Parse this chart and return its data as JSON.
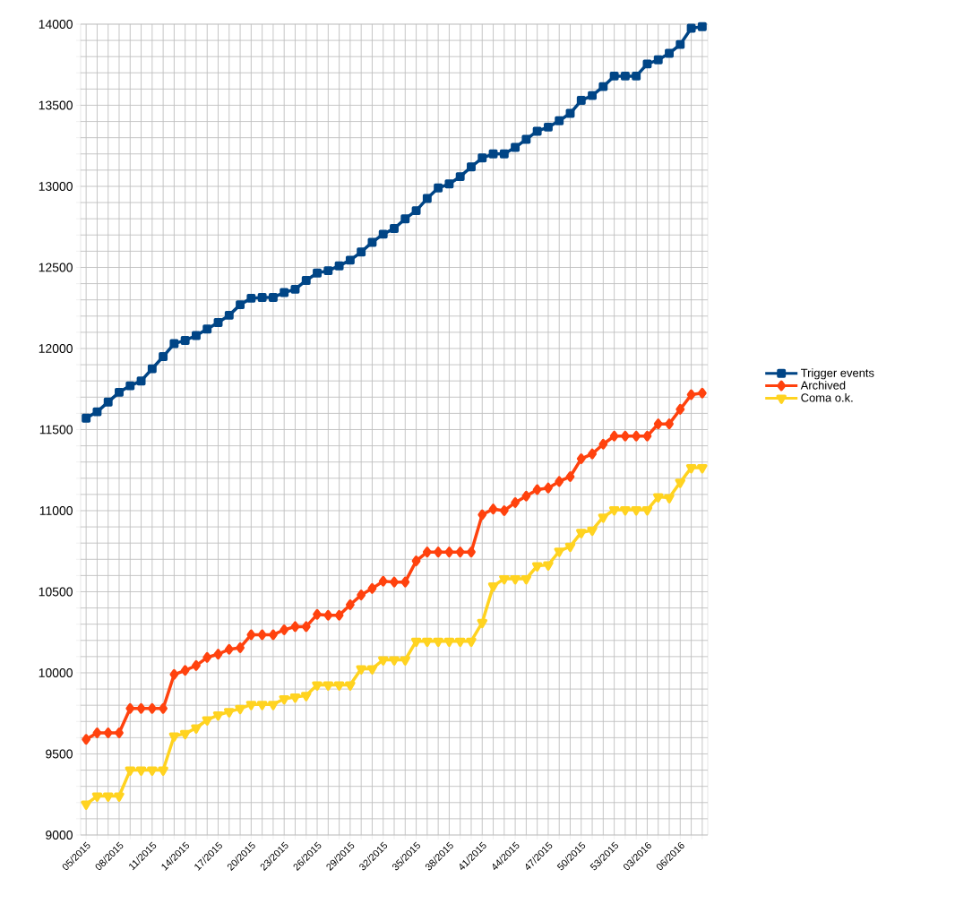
{
  "chart_data": {
    "type": "line",
    "categories": [
      "05/2015",
      null,
      null,
      "08/2015",
      null,
      null,
      "11/2015",
      null,
      null,
      "14/2015",
      null,
      null,
      "17/2015",
      null,
      null,
      "20/2015",
      null,
      null,
      "23/2015",
      null,
      null,
      "26/2015",
      null,
      null,
      "29/2015",
      null,
      null,
      "32/2015",
      null,
      null,
      "35/2015",
      null,
      null,
      "38/2015",
      null,
      null,
      "41/2015",
      null,
      null,
      "44/2015",
      null,
      null,
      "47/2015",
      null,
      null,
      "50/2015",
      null,
      null,
      "53/2015",
      null,
      null,
      "03/2016",
      null,
      null,
      "06/2016",
      null,
      null
    ],
    "series": [
      {
        "name": "Trigger events",
        "color": "#004586",
        "marker": "square",
        "values": [
          11570,
          11610,
          11670,
          11730,
          11770,
          11800,
          11875,
          11950,
          12030,
          12050,
          12080,
          12120,
          12160,
          12205,
          12270,
          12310,
          12315,
          12315,
          12345,
          12365,
          12420,
          12465,
          12480,
          12510,
          12545,
          12595,
          12655,
          12705,
          12740,
          12800,
          12850,
          12925,
          12990,
          13015,
          13060,
          13120,
          13175,
          13200,
          13200,
          13240,
          13290,
          13340,
          13365,
          13405,
          13450,
          13530,
          13560,
          13615,
          13680,
          13680,
          13680,
          13755,
          13780,
          13820,
          13875,
          13975,
          13985
        ]
      },
      {
        "name": "Archived",
        "color": "#ff420e",
        "marker": "diamond",
        "values": [
          9590,
          9630,
          9630,
          9630,
          9780,
          9780,
          9780,
          9780,
          9990,
          10015,
          10045,
          10095,
          10115,
          10145,
          10155,
          10235,
          10235,
          10235,
          10265,
          10285,
          10285,
          10360,
          10355,
          10355,
          10420,
          10480,
          10520,
          10565,
          10560,
          10560,
          10690,
          10745,
          10745,
          10745,
          10745,
          10745,
          10975,
          11010,
          11000,
          11050,
          11090,
          11130,
          11140,
          11180,
          11210,
          11320,
          11350,
          11410,
          11460,
          11460,
          11460,
          11460,
          11535,
          11535,
          11625,
          11715,
          11725
        ]
      },
      {
        "name": "Coma o.k.",
        "color": "#ffd320",
        "marker": "triangle",
        "values": [
          9190,
          9240,
          9240,
          9240,
          9400,
          9400,
          9400,
          9400,
          9610,
          9625,
          9660,
          9710,
          9740,
          9760,
          9780,
          9805,
          9805,
          9805,
          9840,
          9850,
          9860,
          9925,
          9925,
          9925,
          9925,
          10025,
          10025,
          10080,
          10080,
          10080,
          10195,
          10195,
          10195,
          10195,
          10195,
          10195,
          10310,
          10535,
          10580,
          10580,
          10580,
          10660,
          10665,
          10750,
          10780,
          10865,
          10880,
          10960,
          11005,
          11005,
          11005,
          11005,
          11085,
          11080,
          11175,
          11265,
          11265
        ]
      }
    ],
    "ylim": [
      9000,
      14000
    ],
    "yticks": [
      9000,
      {
        "value": 9100,
        "label": null
      },
      {
        "value": 9200,
        "label": null
      },
      {
        "value": 9300,
        "label": null
      },
      {
        "value": 9400,
        "label": null
      },
      9500,
      {
        "value": 9600,
        "label": null
      },
      {
        "value": 9700,
        "label": null
      },
      {
        "value": 9800,
        "label": null
      },
      {
        "value": 9900,
        "label": null
      },
      10000,
      {
        "value": 10100,
        "label": null
      },
      {
        "value": 10200,
        "label": null
      },
      {
        "value": 10300,
        "label": null
      },
      {
        "value": 10400,
        "label": null
      },
      10500,
      {
        "value": 10600,
        "label": null
      },
      {
        "value": 10700,
        "label": null
      },
      {
        "value": 10800,
        "label": null
      },
      {
        "value": 10900,
        "label": null
      },
      11000,
      {
        "value": 11100,
        "label": null
      },
      {
        "value": 11200,
        "label": null
      },
      {
        "value": 11300,
        "label": null
      },
      {
        "value": 11400,
        "label": null
      },
      11500,
      {
        "value": 11600,
        "label": null
      },
      {
        "value": 11700,
        "label": null
      },
      {
        "value": 11800,
        "label": null
      },
      {
        "value": 11900,
        "label": null
      },
      12000,
      {
        "value": 12100,
        "label": null
      },
      {
        "value": 12200,
        "label": null
      },
      {
        "value": 12300,
        "label": null
      },
      {
        "value": 12400,
        "label": null
      },
      12500,
      {
        "value": 12600,
        "label": null
      },
      {
        "value": 12700,
        "label": null
      },
      {
        "value": 12800,
        "label": null
      },
      {
        "value": 12900,
        "label": null
      },
      13000,
      {
        "value": 13100,
        "label": null
      },
      {
        "value": 13200,
        "label": null
      },
      {
        "value": 13300,
        "label": null
      },
      {
        "value": 13400,
        "label": null
      },
      13500,
      {
        "value": 13600,
        "label": null
      },
      {
        "value": 13700,
        "label": null
      },
      {
        "value": 13800,
        "label": null
      },
      {
        "value": 13900,
        "label": null
      },
      14000
    ],
    "grid": true,
    "legend": "right",
    "line_style": "solid"
  }
}
